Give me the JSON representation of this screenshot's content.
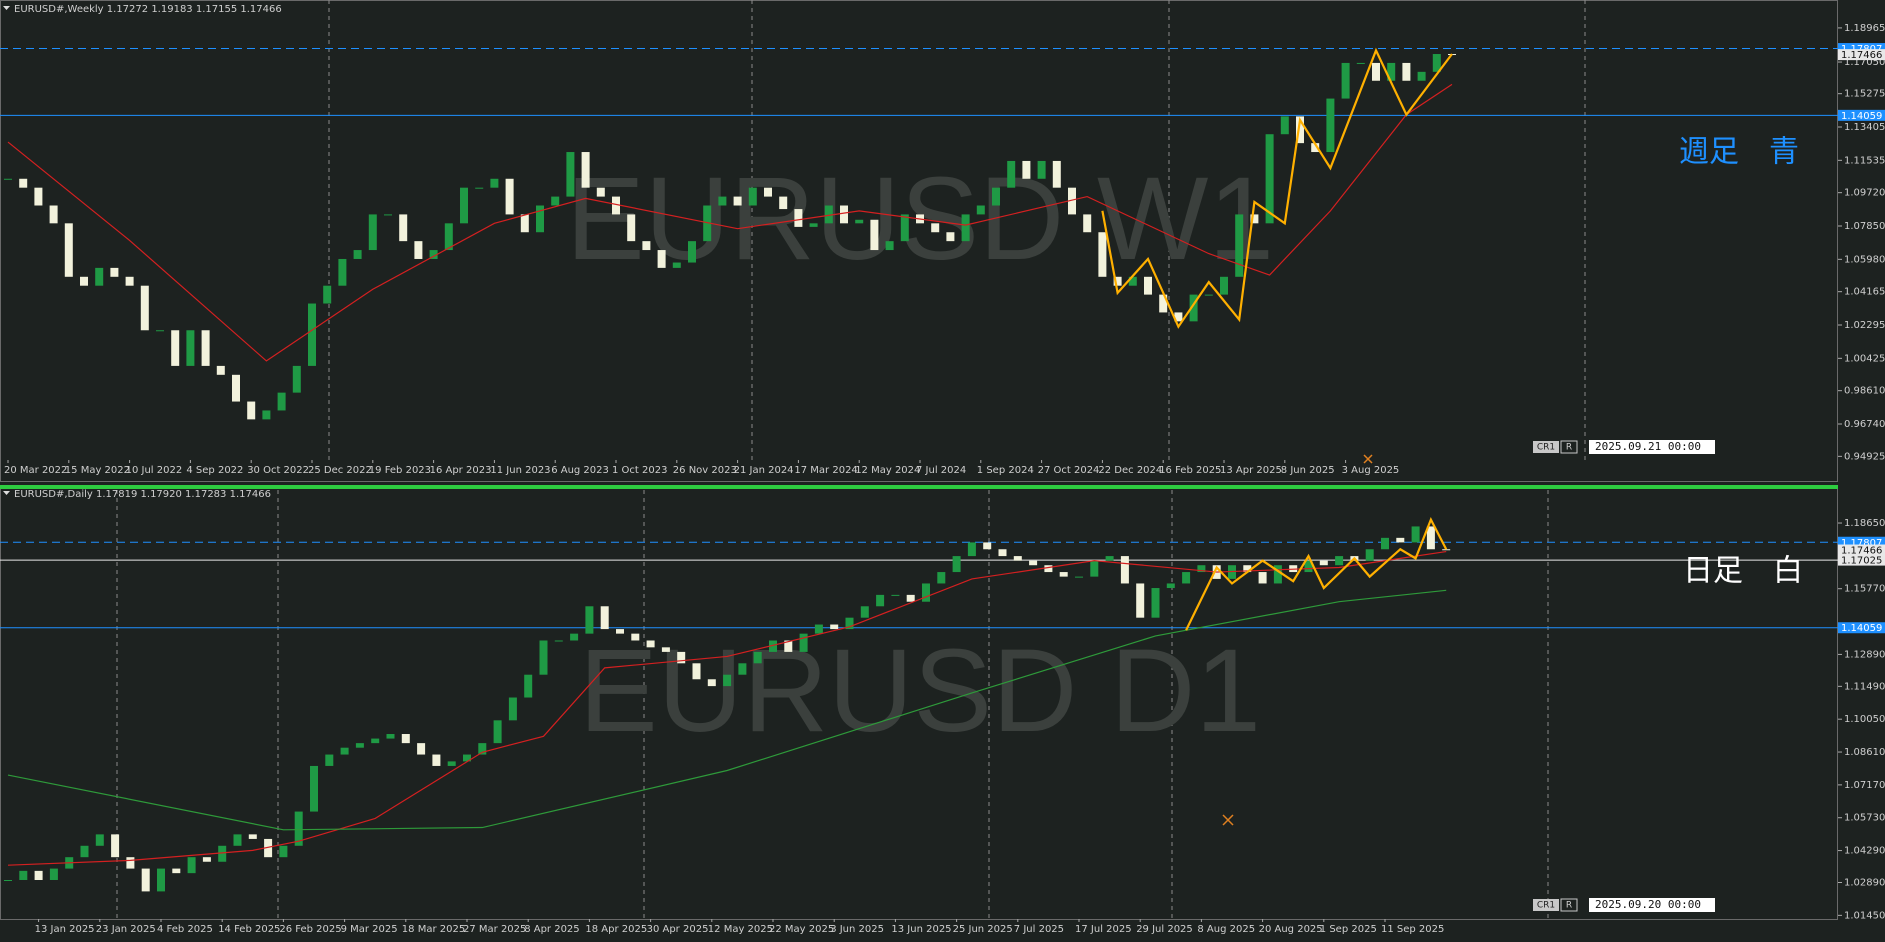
{
  "chart_data": [
    {
      "type": "candlestick",
      "header": "EURUSD#,Weekly  1.17272 1.19183 1.17155 1.17466",
      "watermark": "EURUSD W1",
      "annotation": "週足　青",
      "annotation_color": "#1e90ff",
      "up_color": "#1f9a45",
      "down_color": "#f2f2dc",
      "values": [
        1.105,
        1.1,
        1.09,
        1.08,
        1.05,
        1.045,
        1.055,
        1.05,
        1.045,
        1.02,
        1.02,
        1.0,
        1.02,
        1.0,
        0.995,
        0.98,
        0.97,
        0.975,
        0.985,
        1.0,
        1.035,
        1.045,
        1.06,
        1.065,
        1.085,
        1.085,
        1.07,
        1.06,
        1.065,
        1.08,
        1.1,
        1.1,
        1.105,
        1.085,
        1.075,
        1.09,
        1.095,
        1.12,
        1.1,
        1.095,
        1.085,
        1.07,
        1.065,
        1.055,
        1.058,
        1.07,
        1.09,
        1.095,
        1.09,
        1.1,
        1.095,
        1.088,
        1.078,
        1.08,
        1.09,
        1.08,
        1.082,
        1.065,
        1.07,
        1.085,
        1.08,
        1.075,
        1.07,
        1.085,
        1.09,
        1.1,
        1.115,
        1.105,
        1.115,
        1.1,
        1.085,
        1.075,
        1.05,
        1.045,
        1.05,
        1.04,
        1.03,
        1.025,
        1.04,
        1.04,
        1.05,
        1.085,
        1.08,
        1.13,
        1.14,
        1.125,
        1.12,
        1.15,
        1.17,
        1.17,
        1.16,
        1.17,
        1.16,
        1.165,
        1.175,
        1.17466
      ],
      "ma": [
        {
          "color": "#d42020",
          "x": [
            0,
            8,
            17,
            24,
            32,
            38,
            48,
            56,
            63,
            71,
            79,
            83,
            87,
            92,
            95
          ],
          "values": [
            1.1256,
            1.0704,
            1.0028,
            1.043,
            1.08,
            1.094,
            1.077,
            1.087,
            1.079,
            1.095,
            1.063,
            1.051,
            1.087,
            1.141,
            1.158
          ]
        }
      ],
      "zigzag": {
        "color": "#ffb000",
        "x": [
          72,
          73,
          75,
          77,
          79,
          81,
          82,
          84,
          85,
          87,
          90,
          92,
          95
        ],
        "values": [
          1.087,
          1.041,
          1.06,
          1.022,
          1.047,
          1.026,
          1.092,
          1.08,
          1.138,
          1.111,
          1.177,
          1.141,
          1.175
        ]
      },
      "ylim": [
        0.9472,
        1.1997
      ],
      "yticks": [
        1.18965,
        {
          "value": 1.1705,
          "label": "1.17050"
        },
        1.15275,
        1.13405,
        1.11535,
        {
          "value": 1.0972,
          "label": "1.09720"
        },
        {
          "value": 1.0785,
          "label": "1.07850"
        },
        {
          "value": 1.0598,
          "label": "1.05980"
        },
        1.04165,
        1.02295,
        1.00425,
        {
          "value": 0.9861,
          "label": "0.98610"
        },
        {
          "value": 0.9674,
          "label": "0.96740"
        },
        0.94925
      ],
      "price_lines": [
        {
          "value": 1.17807,
          "color": "#1e90ff",
          "style": "dashed"
        },
        {
          "value": 1.17466,
          "color": "#e8e8e8",
          "style": "none"
        },
        {
          "value": 1.14059,
          "color": "#1e90ff",
          "style": "solid"
        }
      ],
      "x_labels": [
        "20 Mar 2022",
        "15 May 2022",
        "10 Jul 2022",
        "4 Sep 2022",
        "30 Oct 2022",
        "25 Dec 2022",
        "19 Feb 2023",
        "16 Apr 2023",
        "11 Jun 2023",
        "6 Aug 2023",
        "1 Oct 2023",
        "26 Nov 2023",
        "21 Jan 2024",
        "17 Mar 2024",
        "12 May 2024",
        "7 Jul 2024",
        "1 Sep 2024",
        "27 Oct 2024",
        "22 Dec 2024",
        "16 Feb 2025",
        "13 Apr 2025",
        "8 Jun 2025",
        "3 Aug 2025"
      ],
      "footer": {
        "cr": "CR1",
        "r": "R",
        "time": "2025.09.21 00:00"
      }
    },
    {
      "type": "candlestick",
      "header": "EURUSD#,Daily  1.17819 1.17920 1.17283 1.17466",
      "watermark": "EURUSD D1",
      "annotation": "日足　白",
      "annotation_color": "#ffffff",
      "up_color": "#1f9a45",
      "down_color": "#f2f2dc",
      "values": [
        1.03,
        1.034,
        1.03,
        1.035,
        1.04,
        1.045,
        1.05,
        1.04,
        1.035,
        1.025,
        1.035,
        1.033,
        1.04,
        1.038,
        1.045,
        1.05,
        1.048,
        1.04,
        1.045,
        1.06,
        1.08,
        1.085,
        1.088,
        1.09,
        1.092,
        1.094,
        1.09,
        1.085,
        1.08,
        1.082,
        1.085,
        1.09,
        1.1,
        1.11,
        1.12,
        1.135,
        1.135,
        1.138,
        1.15,
        1.14,
        1.138,
        1.135,
        1.132,
        1.13,
        1.125,
        1.118,
        1.115,
        1.12,
        1.125,
        1.13,
        1.135,
        1.13,
        1.138,
        1.142,
        1.14,
        1.145,
        1.15,
        1.155,
        1.155,
        1.152,
        1.16,
        1.165,
        1.172,
        1.178,
        1.175,
        1.172,
        1.17,
        1.168,
        1.165,
        1.163,
        1.163,
        1.17,
        1.172,
        1.16,
        1.145,
        1.158,
        1.16,
        1.165,
        1.168,
        1.162,
        1.168,
        1.165,
        1.16,
        1.168,
        1.165,
        1.17,
        1.168,
        1.172,
        1.17,
        1.175,
        1.18,
        1.178,
        1.185,
        1.175,
        1.17466
      ],
      "ma": [
        {
          "color": "#d42020",
          "x": [
            0,
            8,
            16,
            19,
            24,
            31,
            35,
            39,
            47,
            55,
            63,
            71,
            79,
            87,
            94
          ],
          "values": [
            1.0365,
            1.0386,
            1.043,
            1.047,
            1.057,
            1.086,
            1.093,
            1.123,
            1.128,
            1.141,
            1.162,
            1.17,
            1.165,
            1.167,
            1.174
          ]
        },
        {
          "color": "#2e9a3a",
          "x": [
            0,
            18,
            31,
            47,
            63,
            75,
            87,
            94
          ],
          "values": [
            1.076,
            1.052,
            1.053,
            1.078,
            1.112,
            1.137,
            1.152,
            1.157
          ]
        }
      ],
      "zigzag": {
        "color": "#ffb000",
        "x": [
          77,
          79,
          80,
          82,
          84,
          85,
          86,
          88,
          89,
          91,
          92,
          93,
          94
        ],
        "values": [
          1.1395,
          1.167,
          1.16,
          1.17,
          1.161,
          1.172,
          1.158,
          1.171,
          1.163,
          1.175,
          1.171,
          1.188,
          1.175
        ]
      },
      "ylim": [
        1.0129,
        1.2001
      ],
      "yticks": [
        {
          "value": 1.1865,
          "label": "1.18650"
        },
        {
          "value": 1.1577,
          "label": "1.15770"
        },
        {
          "value": 1.1289,
          "label": "1.12890"
        },
        {
          "value": 1.1149,
          "label": "1.11490"
        },
        {
          "value": 1.1005,
          "label": "1.10050"
        },
        {
          "value": 1.0861,
          "label": "1.08610"
        },
        {
          "value": 1.0717,
          "label": "1.07170"
        },
        {
          "value": 1.0573,
          "label": "1.05730"
        },
        {
          "value": 1.0429,
          "label": "1.04290"
        },
        {
          "value": 1.0289,
          "label": "1.02890"
        },
        {
          "value": 1.0145,
          "label": "1.01450"
        }
      ],
      "price_lines": [
        {
          "value": 1.17807,
          "color": "#1e90ff",
          "style": "dashed"
        },
        {
          "value": 1.17466,
          "color": "#e8e8e8",
          "style": "none"
        },
        {
          "value": 1.17025,
          "color": "#e8e8e8",
          "style": "solid"
        },
        {
          "value": 1.14059,
          "color": "#1e90ff",
          "style": "solid"
        }
      ],
      "x_labels": [
        "13 Jan 2025",
        "23 Jan 2025",
        "4 Feb 2025",
        "14 Feb 2025",
        "26 Feb 2025",
        "9 Mar 2025",
        "18 Mar 2025",
        "27 Mar 2025",
        "8 Apr 2025",
        "18 Apr 2025",
        "30 Apr 2025",
        "12 May 2025",
        "22 May 2025",
        "3 Jun 2025",
        "13 Jun 2025",
        "25 Jun 2025",
        "7 Jul 2025",
        "17 Jul 2025",
        "29 Jul 2025",
        "8 Aug 2025",
        "20 Aug 2025",
        "1 Sep 2025",
        "11 Sep 2025"
      ],
      "footer": {
        "cr": "CR1",
        "r": "R",
        "time": "2025.09.20 00:00"
      }
    }
  ]
}
